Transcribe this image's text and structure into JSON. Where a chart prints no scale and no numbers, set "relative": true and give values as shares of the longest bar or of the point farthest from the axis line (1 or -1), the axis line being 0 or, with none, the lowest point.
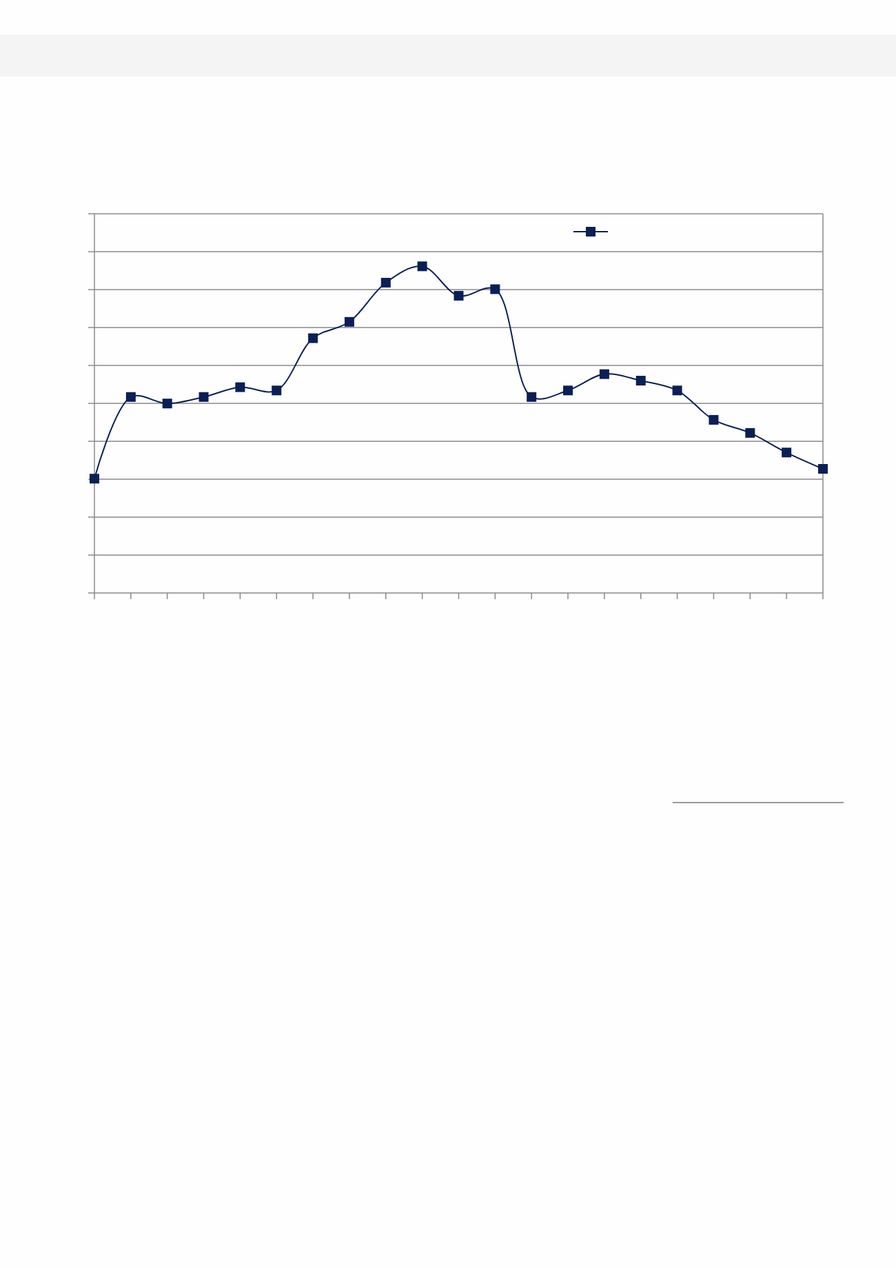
{
  "chart_data": {
    "type": "line",
    "relative": true,
    "categories": [
      null,
      null,
      null,
      null,
      null,
      null,
      null,
      null,
      null,
      null,
      null,
      null,
      null,
      null,
      null,
      null,
      null,
      null,
      null,
      null,
      null
    ],
    "series": [
      {
        "color": "#0a1f55",
        "values": [
          0.35,
          0.6,
          0.58,
          0.6,
          0.63,
          0.62,
          0.78,
          0.83,
          0.95,
          1,
          0.91,
          0.93,
          0.6,
          0.62,
          0.67,
          0.65,
          0.62,
          0.53,
          0.49,
          0.43,
          0.38
        ]
      }
    ],
    "grid": "y",
    "marker": "square",
    "line_style": "solid"
  }
}
